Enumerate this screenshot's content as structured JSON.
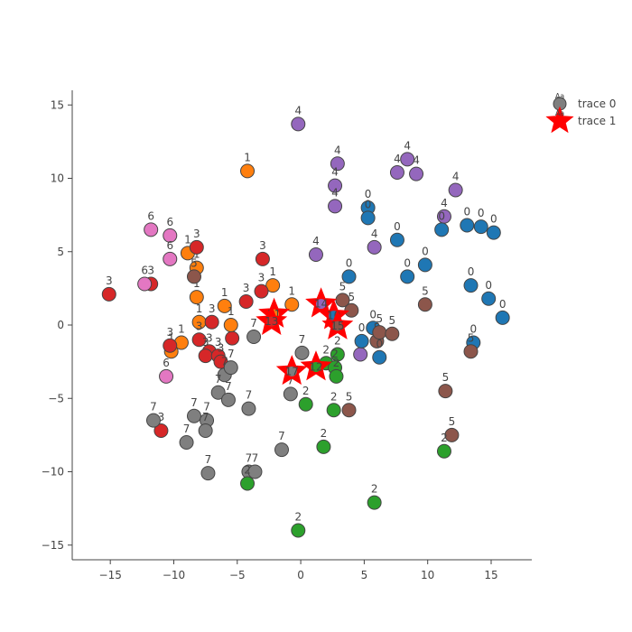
{
  "chart_data": {
    "type": "scatter",
    "xlim": [
      -18,
      18.2
    ],
    "ylim": [
      -16,
      16
    ],
    "xticks": [
      -15,
      -10,
      -5,
      0,
      5,
      10,
      15
    ],
    "yticks": [
      -15,
      -10,
      -5,
      0,
      5,
      10,
      15
    ],
    "grid": false,
    "legend_position": "top-right",
    "class_colors": {
      "0": "#1f77b4",
      "1": "#ff7f0e",
      "2": "#2ca02c",
      "3": "#d62728",
      "4": "#9467bd",
      "5": "#8c564b",
      "6": "#e377c2",
      "7": "#7f7f7f"
    },
    "legend": [
      {
        "name": "trace 0",
        "symbol": "circle",
        "color": "#7f7f7f",
        "marker_text": "Aa"
      },
      {
        "name": "trace 1",
        "symbol": "star",
        "color": "#ff0000",
        "marker_text": "Aa"
      }
    ],
    "series": [
      {
        "name": "trace 0",
        "symbol": "circle",
        "points": [
          {
            "x": -0.2,
            "y": 13.7,
            "label": "4"
          },
          {
            "x": 2.9,
            "y": 11.0,
            "label": "4"
          },
          {
            "x": 8.4,
            "y": 11.3,
            "label": "4"
          },
          {
            "x": 7.6,
            "y": 10.4,
            "label": "4"
          },
          {
            "x": 9.1,
            "y": 10.3,
            "label": "4"
          },
          {
            "x": 2.7,
            "y": 9.5,
            "label": "4"
          },
          {
            "x": 12.2,
            "y": 9.2,
            "label": "4"
          },
          {
            "x": 2.7,
            "y": 8.1,
            "label": "4"
          },
          {
            "x": 5.3,
            "y": 8.0,
            "label": "0"
          },
          {
            "x": 11.3,
            "y": 7.4,
            "label": "4"
          },
          {
            "x": 5.8,
            "y": 5.3,
            "label": "4"
          },
          {
            "x": 1.2,
            "y": 4.8,
            "label": "4"
          },
          {
            "x": 4.7,
            "y": -2.0,
            "label": "4"
          },
          {
            "x": 5.3,
            "y": 7.3,
            "label": "0"
          },
          {
            "x": 11.1,
            "y": 6.5,
            "label": "0"
          },
          {
            "x": 13.1,
            "y": 6.8,
            "label": "0"
          },
          {
            "x": 14.2,
            "y": 6.7,
            "label": "0"
          },
          {
            "x": 15.2,
            "y": 6.3,
            "label": "0"
          },
          {
            "x": 7.6,
            "y": 5.8,
            "label": "0"
          },
          {
            "x": 9.8,
            "y": 4.1,
            "label": "0"
          },
          {
            "x": 8.4,
            "y": 3.3,
            "label": "0"
          },
          {
            "x": 3.8,
            "y": 3.3,
            "label": "0"
          },
          {
            "x": 13.4,
            "y": 2.7,
            "label": "0"
          },
          {
            "x": 14.8,
            "y": 1.8,
            "label": "0"
          },
          {
            "x": 15.9,
            "y": 0.5,
            "label": "0"
          },
          {
            "x": 5.7,
            "y": -0.2,
            "label": "0"
          },
          {
            "x": 4.8,
            "y": -1.1,
            "label": "0"
          },
          {
            "x": 13.6,
            "y": -1.2,
            "label": "0"
          },
          {
            "x": 6.0,
            "y": -1.1,
            "label": "5"
          },
          {
            "x": 9.8,
            "y": 1.4,
            "label": "5"
          },
          {
            "x": 3.3,
            "y": 1.7,
            "label": "5"
          },
          {
            "x": 4.0,
            "y": 1.0,
            "label": "5"
          },
          {
            "x": 6.2,
            "y": -0.5,
            "label": "5"
          },
          {
            "x": 7.2,
            "y": -0.6,
            "label": "5"
          },
          {
            "x": 13.4,
            "y": -1.8,
            "label": "5"
          },
          {
            "x": 6.2,
            "y": -2.2,
            "label": "0"
          },
          {
            "x": 11.4,
            "y": -4.5,
            "label": "5"
          },
          {
            "x": 3.8,
            "y": -5.8,
            "label": "5"
          },
          {
            "x": 11.9,
            "y": -7.5,
            "label": "5"
          },
          {
            "x": -4.2,
            "y": 10.5,
            "label": "1"
          },
          {
            "x": -8.9,
            "y": 4.9,
            "label": "1"
          },
          {
            "x": -8.2,
            "y": 3.9,
            "label": "1"
          },
          {
            "x": -2.2,
            "y": 2.7,
            "label": "1"
          },
          {
            "x": -0.7,
            "y": 1.4,
            "label": "1"
          },
          {
            "x": -8.2,
            "y": 1.9,
            "label": "1"
          },
          {
            "x": -6.0,
            "y": 1.3,
            "label": "1"
          },
          {
            "x": -8.0,
            "y": 0.2,
            "label": "1"
          },
          {
            "x": -9.4,
            "y": -1.2,
            "label": "1"
          },
          {
            "x": -8.0,
            "y": -1.0,
            "label": "3"
          },
          {
            "x": -10.2,
            "y": -1.8,
            "label": "1"
          },
          {
            "x": -5.4,
            "y": -0.9,
            "label": "3"
          },
          {
            "x": -8.2,
            "y": 5.3,
            "label": "3"
          },
          {
            "x": -3.0,
            "y": 4.5,
            "label": "3"
          },
          {
            "x": -15.1,
            "y": 2.1,
            "label": "3"
          },
          {
            "x": -11.8,
            "y": 2.8,
            "label": "3"
          },
          {
            "x": -4.3,
            "y": 1.6,
            "label": "3"
          },
          {
            "x": -3.1,
            "y": 2.3,
            "label": "3"
          },
          {
            "x": -7.0,
            "y": 0.2,
            "label": "3"
          },
          {
            "x": -5.5,
            "y": 0.0,
            "label": "1"
          },
          {
            "x": -10.3,
            "y": -1.4,
            "label": "3"
          },
          {
            "x": -7.2,
            "y": -1.8,
            "label": "3"
          },
          {
            "x": -7.5,
            "y": -2.1,
            "label": "3"
          },
          {
            "x": -6.5,
            "y": -2.1,
            "label": "3"
          },
          {
            "x": -6.3,
            "y": -2.5,
            "label": "3"
          },
          {
            "x": -6.0,
            "y": -3.4,
            "label": "7"
          },
          {
            "x": -11.0,
            "y": -7.2,
            "label": "3"
          },
          {
            "x": -11.8,
            "y": 6.5,
            "label": "6"
          },
          {
            "x": -10.3,
            "y": 6.1,
            "label": "6"
          },
          {
            "x": -10.3,
            "y": 4.5,
            "label": "6"
          },
          {
            "x": -8.4,
            "y": 3.3,
            "label": "5"
          },
          {
            "x": -12.3,
            "y": 2.8,
            "label": "6"
          },
          {
            "x": -10.6,
            "y": -3.5,
            "label": "6"
          },
          {
            "x": -3.7,
            "y": -0.8,
            "label": "7"
          },
          {
            "x": 0.1,
            "y": -1.9,
            "label": "7"
          },
          {
            "x": -5.5,
            "y": -2.9,
            "label": "7"
          },
          {
            "x": -6.5,
            "y": -4.6,
            "label": "7"
          },
          {
            "x": -5.7,
            "y": -5.1,
            "label": "7"
          },
          {
            "x": -4.1,
            "y": -5.7,
            "label": "7"
          },
          {
            "x": -0.8,
            "y": -4.7,
            "label": "7"
          },
          {
            "x": -8.4,
            "y": -6.2,
            "label": "7"
          },
          {
            "x": -11.6,
            "y": -6.5,
            "label": "7"
          },
          {
            "x": -7.4,
            "y": -6.5,
            "label": "7"
          },
          {
            "x": -7.5,
            "y": -7.2,
            "label": "7"
          },
          {
            "x": -9.0,
            "y": -8.0,
            "label": "7"
          },
          {
            "x": -1.5,
            "y": -8.5,
            "label": "7"
          },
          {
            "x": -7.3,
            "y": -10.1,
            "label": "7"
          },
          {
            "x": -4.1,
            "y": -10.0,
            "label": "7"
          },
          {
            "x": -3.6,
            "y": -10.0,
            "label": "7"
          },
          {
            "x": 2.9,
            "y": -2.0,
            "label": "2"
          },
          {
            "x": 2.0,
            "y": -2.6,
            "label": "2"
          },
          {
            "x": 2.7,
            "y": -2.9,
            "label": "2"
          },
          {
            "x": 2.8,
            "y": -3.5,
            "label": "2"
          },
          {
            "x": 0.4,
            "y": -5.4,
            "label": "2"
          },
          {
            "x": 2.6,
            "y": -5.8,
            "label": "2"
          },
          {
            "x": 1.8,
            "y": -8.3,
            "label": "2"
          },
          {
            "x": 11.3,
            "y": -8.6,
            "label": "2"
          },
          {
            "x": -4.2,
            "y": -10.8,
            "label": "2"
          },
          {
            "x": 5.8,
            "y": -12.1,
            "label": "2"
          },
          {
            "x": -0.2,
            "y": -14.0,
            "label": "2"
          }
        ]
      },
      {
        "name": "trace 1",
        "symbol": "star",
        "points": [
          {
            "x": 1.6,
            "y": 1.5,
            "label": "14",
            "class": "4"
          },
          {
            "x": 2.6,
            "y": 0.7,
            "label": "10",
            "class": "0"
          },
          {
            "x": 2.9,
            "y": 0.0,
            "label": "15",
            "class": "5"
          },
          {
            "x": -2.1,
            "y": 0.8,
            "label": "11",
            "class": "1"
          },
          {
            "x": -2.3,
            "y": 0.3,
            "label": "13",
            "class": "3"
          },
          {
            "x": -0.7,
            "y": -3.1,
            "label": "17",
            "class": "7"
          },
          {
            "x": 1.2,
            "y": -2.8,
            "label": "12",
            "class": "2"
          }
        ]
      }
    ]
  }
}
